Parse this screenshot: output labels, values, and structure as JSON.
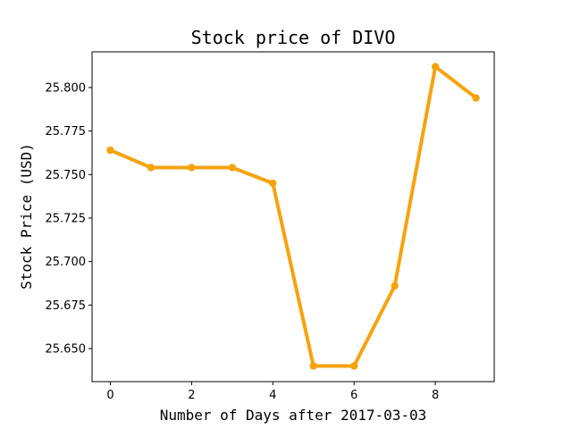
{
  "chart_data": {
    "type": "line",
    "title": "Stock price of DIVO",
    "xlabel": "Number of Days after 2017-03-03",
    "ylabel": "Stock Price (USD)",
    "x": [
      0,
      1,
      2,
      3,
      4,
      5,
      6,
      7,
      8,
      9
    ],
    "series": [
      {
        "values": [
          25.764,
          25.754,
          25.754,
          25.754,
          25.745,
          25.64,
          25.64,
          25.686,
          25.812,
          25.794
        ],
        "color": "#f5a30f"
      }
    ],
    "xlim": [
      -0.45,
      9.45
    ],
    "ylim": [
      25.631,
      25.8205
    ],
    "xticks": [
      "0",
      "2",
      "4",
      "6",
      "8"
    ],
    "xtick_values": [
      0,
      2,
      4,
      6,
      8
    ],
    "yticks": [
      "25.650",
      "25.675",
      "25.700",
      "25.725",
      "25.750",
      "25.775",
      "25.800"
    ],
    "ytick_values": [
      25.65,
      25.675,
      25.7,
      25.725,
      25.75,
      25.775,
      25.8
    ],
    "grid": false,
    "legend": "none"
  }
}
